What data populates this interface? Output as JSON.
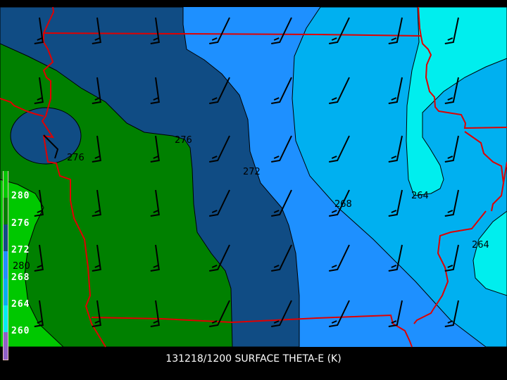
{
  "title": "131218/1200 SURFACE THETA-E (K)",
  "legend": {
    "bands": [
      {
        "label": "280",
        "color": "#00c800"
      },
      {
        "label": "276",
        "color": "#008000"
      },
      {
        "label": "272",
        "color": "#104c84"
      },
      {
        "label": "268",
        "color": "#1e90ff"
      },
      {
        "label": "264",
        "color": "#00b0f0"
      },
      {
        "label": "260",
        "color": "#00eeee"
      },
      {
        "label": "",
        "color": "#9060c8"
      }
    ]
  },
  "contour_labels": [
    "276",
    "276",
    "272",
    "268",
    "264",
    "264",
    "280"
  ],
  "colors": {
    "border": "#e00000",
    "contour": "#000000",
    "barb": "#000000"
  }
}
